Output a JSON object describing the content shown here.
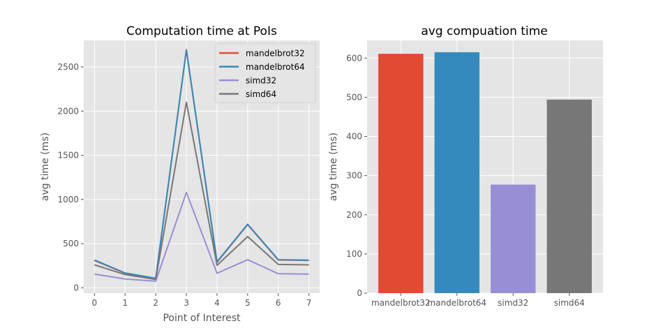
{
  "colors": {
    "background": "#e5e5e5",
    "grid": "#ffffff",
    "tick_text": "#555555",
    "mandelbrot32": "#e24a33",
    "mandelbrot64": "#348abd",
    "simd32": "#988ed5",
    "simd64": "#777777"
  },
  "chart_data": [
    {
      "type": "line",
      "title": "Computation time at PoIs",
      "xlabel": "Point of Interest",
      "ylabel": "avg time (ms)",
      "x": [
        0,
        1,
        2,
        3,
        4,
        5,
        6,
        7
      ],
      "xlim": [
        -0.35,
        7.35
      ],
      "ylim": [
        -60,
        2800
      ],
      "xticks": [
        "0",
        "1",
        "2",
        "3",
        "4",
        "5",
        "6",
        "7"
      ],
      "yticks": [
        0,
        500,
        1000,
        1500,
        2000,
        2500
      ],
      "grid": true,
      "legend": "top-right",
      "series": [
        {
          "name": "mandelbrot32",
          "color": "#e24a33",
          "values": [
            310,
            165,
            105,
            2690,
            290,
            715,
            315,
            310
          ]
        },
        {
          "name": "mandelbrot64",
          "color": "#348abd",
          "values": [
            315,
            168,
            108,
            2695,
            295,
            720,
            318,
            313
          ]
        },
        {
          "name": "simd32",
          "color": "#988ed5",
          "values": [
            155,
            100,
            75,
            1080,
            165,
            318,
            160,
            155
          ]
        },
        {
          "name": "simd64",
          "color": "#777777",
          "values": [
            260,
            150,
            95,
            2100,
            255,
            580,
            265,
            260
          ]
        }
      ]
    },
    {
      "type": "bar",
      "title": "avg compuation time",
      "xlabel": "",
      "ylabel": "avg time (ms)",
      "categories": [
        "mandelbrot32",
        "mandelbrot64",
        "simd32",
        "simd64"
      ],
      "values": [
        611,
        615,
        277,
        494
      ],
      "bar_colors": [
        "#e24a33",
        "#348abd",
        "#988ed5",
        "#777777"
      ],
      "ylim": [
        0,
        645
      ],
      "yticks": [
        0,
        100,
        200,
        300,
        400,
        500,
        600
      ],
      "grid": true
    }
  ]
}
